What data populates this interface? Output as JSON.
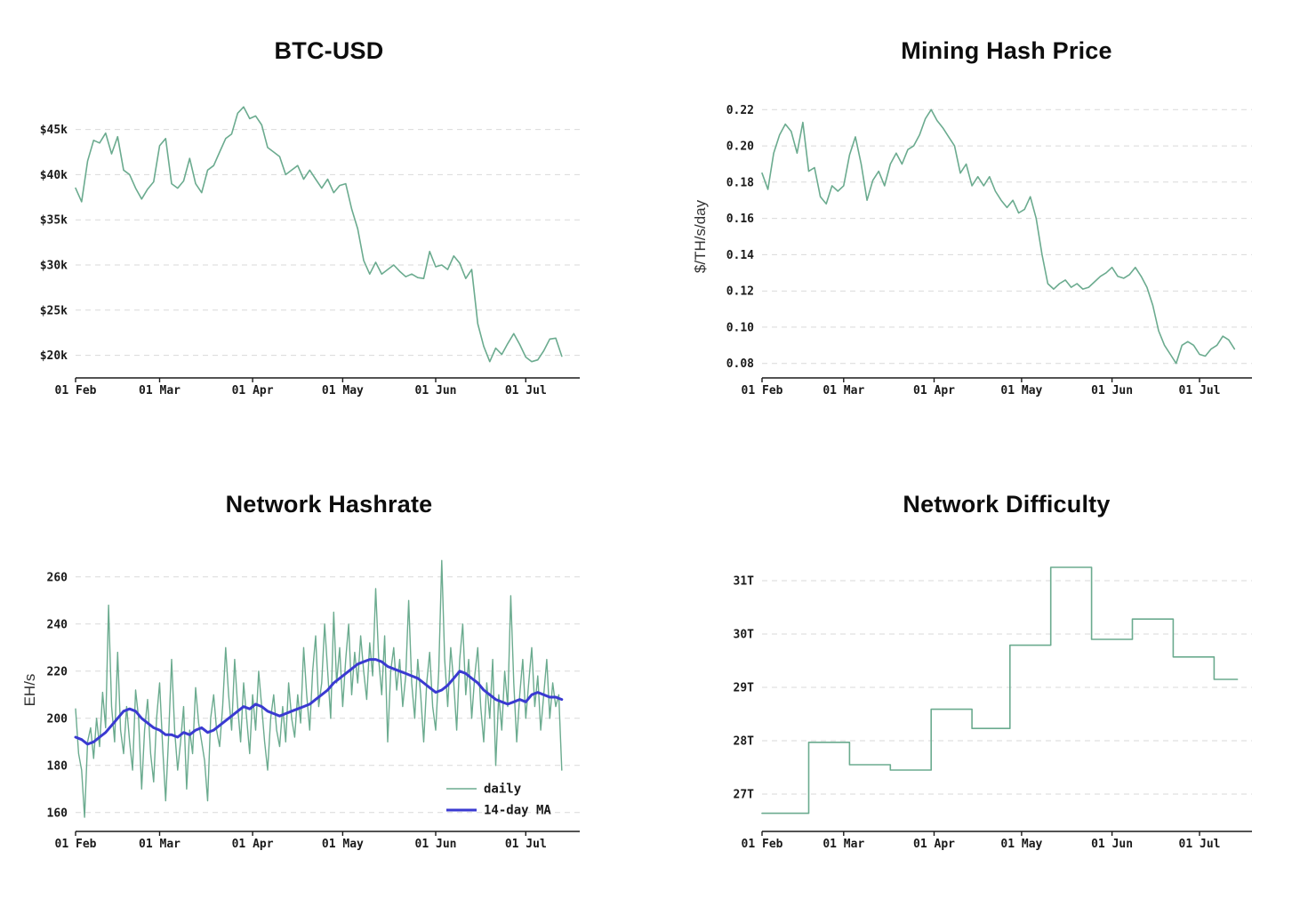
{
  "style": {
    "background": "#ffffff",
    "grid_color": "#d9d9d9",
    "axis_color": "#1a1a1a",
    "tick_color": "#1a1a1a",
    "green": "#6bab8f",
    "blue": "#3a3ad1"
  },
  "chart_data": [
    {
      "id": "btc-usd",
      "type": "line",
      "title": "BTC-USD",
      "ylabel": "",
      "x_unit": "days from 01 Feb",
      "xlim": [
        0,
        168
      ],
      "ylim": [
        17500,
        48800
      ],
      "grid": "horizontal-dashed",
      "x_ticks": [
        {
          "day": 0,
          "label": "01 Feb"
        },
        {
          "day": 28,
          "label": "01 Mar"
        },
        {
          "day": 59,
          "label": "01 Apr"
        },
        {
          "day": 89,
          "label": "01 May"
        },
        {
          "day": 120,
          "label": "01 Jun"
        },
        {
          "day": 150,
          "label": "01 Jul"
        }
      ],
      "y_ticks": [
        {
          "v": 20000,
          "label": "$20k"
        },
        {
          "v": 25000,
          "label": "$25k"
        },
        {
          "v": 30000,
          "label": "$30k"
        },
        {
          "v": 35000,
          "label": "$35k"
        },
        {
          "v": 40000,
          "label": "$40k"
        },
        {
          "v": 45000,
          "label": "$45k"
        }
      ],
      "series": [
        {
          "name": "btc-usd-price",
          "color": "green",
          "width": 1.6,
          "x_start": 0,
          "x_step": 2,
          "values": [
            38500,
            37000,
            41500,
            43800,
            43500,
            44600,
            42300,
            44200,
            40500,
            40000,
            38500,
            37300,
            38400,
            39200,
            43200,
            44000,
            39000,
            38500,
            39300,
            41800,
            39000,
            38000,
            40500,
            41000,
            42500,
            44000,
            44500,
            46800,
            47500,
            46200,
            46500,
            45500,
            43000,
            42500,
            42000,
            40000,
            40500,
            41000,
            39500,
            40500,
            39500,
            38500,
            39500,
            38000,
            38800,
            39000,
            36200,
            34000,
            30500,
            29000,
            30300,
            29000,
            29500,
            30000,
            29300,
            28700,
            29000,
            28600,
            28500,
            31500,
            29800,
            30000,
            29500,
            31000,
            30200,
            28500,
            29500,
            23500,
            21000,
            19300,
            20800,
            20100,
            21300,
            22400,
            21200,
            19800,
            19300,
            19500,
            20500,
            21800,
            21900,
            19900
          ]
        }
      ]
    },
    {
      "id": "mining-hash-price",
      "type": "line",
      "title": "Mining Hash Price",
      "ylabel": "$/TH/s/day",
      "x_unit": "days from 01 Feb",
      "xlim": [
        0,
        168
      ],
      "ylim": [
        0.072,
        0.228
      ],
      "grid": "horizontal-dashed",
      "x_ticks": [
        {
          "day": 0,
          "label": "01 Feb"
        },
        {
          "day": 28,
          "label": "01 Mar"
        },
        {
          "day": 59,
          "label": "01 Apr"
        },
        {
          "day": 89,
          "label": "01 May"
        },
        {
          "day": 120,
          "label": "01 Jun"
        },
        {
          "day": 150,
          "label": "01 Jul"
        }
      ],
      "y_ticks": [
        {
          "v": 0.08,
          "label": "0.08"
        },
        {
          "v": 0.1,
          "label": "0.10"
        },
        {
          "v": 0.12,
          "label": "0.12"
        },
        {
          "v": 0.14,
          "label": "0.14"
        },
        {
          "v": 0.16,
          "label": "0.16"
        },
        {
          "v": 0.18,
          "label": "0.18"
        },
        {
          "v": 0.2,
          "label": "0.20"
        },
        {
          "v": 0.22,
          "label": "0.22"
        }
      ],
      "series": [
        {
          "name": "hash-price",
          "color": "green",
          "width": 1.6,
          "x_start": 0,
          "x_step": 2,
          "values": [
            0.185,
            0.176,
            0.196,
            0.206,
            0.212,
            0.208,
            0.196,
            0.213,
            0.186,
            0.188,
            0.172,
            0.168,
            0.178,
            0.175,
            0.178,
            0.195,
            0.205,
            0.19,
            0.17,
            0.181,
            0.186,
            0.178,
            0.19,
            0.196,
            0.19,
            0.198,
            0.2,
            0.206,
            0.215,
            0.22,
            0.214,
            0.21,
            0.205,
            0.2,
            0.185,
            0.19,
            0.178,
            0.183,
            0.178,
            0.183,
            0.175,
            0.17,
            0.166,
            0.17,
            0.163,
            0.165,
            0.172,
            0.16,
            0.14,
            0.124,
            0.121,
            0.124,
            0.126,
            0.122,
            0.124,
            0.121,
            0.122,
            0.125,
            0.128,
            0.13,
            0.133,
            0.128,
            0.127,
            0.129,
            0.133,
            0.128,
            0.122,
            0.112,
            0.098,
            0.09,
            0.085,
            0.08,
            0.09,
            0.092,
            0.09,
            0.085,
            0.084,
            0.088,
            0.09,
            0.095,
            0.093,
            0.088
          ]
        }
      ]
    },
    {
      "id": "network-hashrate",
      "type": "line",
      "title": "Network Hashrate",
      "ylabel": "EH/s",
      "x_unit": "days from 01 Feb",
      "xlim": [
        0,
        168
      ],
      "ylim": [
        152,
        272
      ],
      "grid": "horizontal-dashed",
      "x_ticks": [
        {
          "day": 0,
          "label": "01 Feb"
        },
        {
          "day": 28,
          "label": "01 Mar"
        },
        {
          "day": 59,
          "label": "01 Apr"
        },
        {
          "day": 89,
          "label": "01 May"
        },
        {
          "day": 120,
          "label": "01 Jun"
        },
        {
          "day": 150,
          "label": "01 Jul"
        }
      ],
      "y_ticks": [
        {
          "v": 160,
          "label": "160"
        },
        {
          "v": 180,
          "label": "180"
        },
        {
          "v": 200,
          "label": "200"
        },
        {
          "v": 220,
          "label": "220"
        },
        {
          "v": 240,
          "label": "240"
        },
        {
          "v": 260,
          "label": "260"
        }
      ],
      "legend": {
        "position": "bottom-right",
        "items": [
          {
            "label": "daily",
            "color": "green",
            "width": 1.6
          },
          {
            "label": "14-day MA",
            "color": "blue",
            "width": 3
          }
        ]
      },
      "series": [
        {
          "name": "daily",
          "color": "green",
          "width": 1.4,
          "x_start": 0,
          "x_step": 1,
          "values": [
            204,
            185,
            178,
            158,
            190,
            196,
            183,
            200,
            188,
            211,
            196,
            248,
            205,
            190,
            228,
            195,
            185,
            205,
            190,
            178,
            212,
            200,
            170,
            195,
            208,
            185,
            173,
            200,
            215,
            188,
            165,
            192,
            225,
            195,
            178,
            190,
            205,
            170,
            195,
            185,
            213,
            198,
            190,
            182,
            165,
            200,
            210,
            195,
            188,
            205,
            230,
            210,
            195,
            225,
            205,
            190,
            215,
            200,
            185,
            210,
            195,
            220,
            205,
            190,
            178,
            200,
            210,
            195,
            188,
            205,
            190,
            215,
            200,
            192,
            210,
            198,
            230,
            210,
            195,
            220,
            235,
            205,
            215,
            240,
            220,
            200,
            245,
            215,
            230,
            205,
            225,
            240,
            210,
            228,
            215,
            235,
            220,
            208,
            232,
            218,
            255,
            225,
            210,
            235,
            190,
            220,
            230,
            212,
            225,
            205,
            218,
            250,
            215,
            200,
            225,
            210,
            190,
            215,
            228,
            205,
            195,
            220,
            267,
            225,
            205,
            230,
            215,
            195,
            225,
            240,
            210,
            225,
            200,
            218,
            230,
            205,
            190,
            215,
            200,
            225,
            180,
            210,
            195,
            220,
            205,
            252,
            215,
            190,
            210,
            225,
            200,
            215,
            230,
            205,
            218,
            195,
            210,
            225,
            200,
            215,
            205,
            210,
            178
          ]
        },
        {
          "name": "14-day MA",
          "color": "blue",
          "width": 3,
          "x_start": 0,
          "x_step": 2,
          "values": [
            192,
            191,
            189,
            190,
            192,
            194,
            197,
            200,
            203,
            204,
            203,
            200,
            198,
            196,
            195,
            193,
            193,
            192,
            194,
            193,
            195,
            196,
            194,
            195,
            197,
            199,
            201,
            203,
            205,
            204,
            206,
            205,
            203,
            202,
            201,
            202,
            203,
            204,
            205,
            206,
            208,
            210,
            212,
            215,
            217,
            219,
            221,
            223,
            224,
            225,
            225,
            224,
            222,
            221,
            220,
            219,
            218,
            217,
            215,
            213,
            211,
            212,
            214,
            217,
            220,
            219,
            217,
            215,
            212,
            210,
            208,
            207,
            206,
            207,
            208,
            207,
            210,
            211,
            210,
            209,
            209,
            208
          ]
        }
      ]
    },
    {
      "id": "network-difficulty",
      "type": "line",
      "title": "Network Difficulty",
      "ylabel": "",
      "x_unit": "days from 01 Feb",
      "xlim": [
        0,
        168
      ],
      "ylim": [
        26.3,
        31.6
      ],
      "grid": "horizontal-dashed",
      "x_ticks": [
        {
          "day": 0,
          "label": "01 Feb"
        },
        {
          "day": 28,
          "label": "01 Mar"
        },
        {
          "day": 59,
          "label": "01 Apr"
        },
        {
          "day": 89,
          "label": "01 May"
        },
        {
          "day": 120,
          "label": "01 Jun"
        },
        {
          "day": 150,
          "label": "01 Jul"
        }
      ],
      "y_ticks": [
        {
          "v": 27,
          "label": "27T"
        },
        {
          "v": 28,
          "label": "28T"
        },
        {
          "v": 29,
          "label": "29T"
        },
        {
          "v": 30,
          "label": "30T"
        },
        {
          "v": 31,
          "label": "31T"
        }
      ],
      "series": [
        {
          "name": "difficulty",
          "color": "green",
          "width": 1.6,
          "x": [
            0,
            16,
            16,
            30,
            30,
            44,
            44,
            58,
            58,
            72,
            72,
            85,
            85,
            99,
            99,
            113,
            113,
            127,
            127,
            141,
            141,
            155,
            155,
            163
          ],
          "values": [
            26.64,
            26.64,
            27.97,
            27.97,
            27.55,
            27.55,
            27.45,
            27.45,
            28.59,
            28.59,
            28.23,
            28.23,
            29.79,
            29.79,
            31.25,
            31.25,
            29.9,
            29.9,
            30.28,
            30.28,
            29.57,
            29.57,
            29.15,
            29.15
          ]
        }
      ]
    }
  ]
}
